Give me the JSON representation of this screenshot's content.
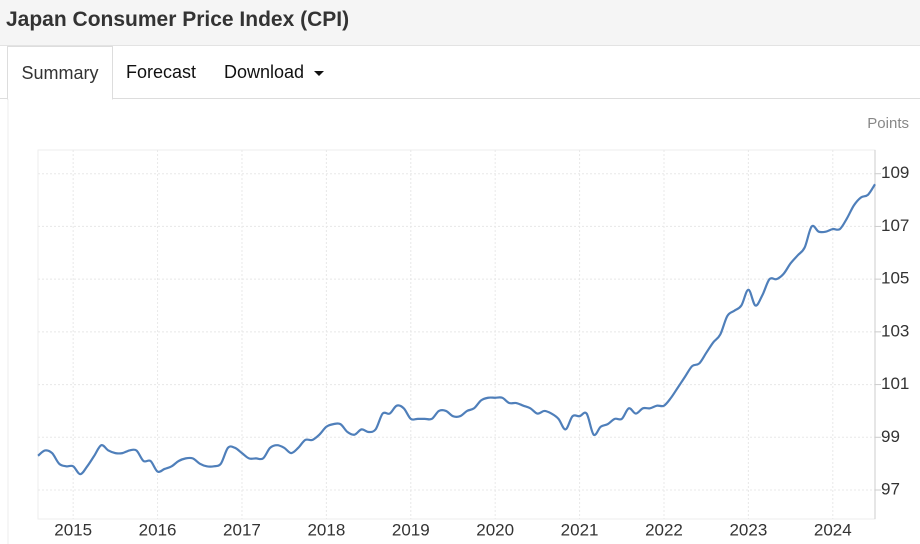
{
  "header": {
    "title": "Japan Consumer Price Index (CPI)"
  },
  "tabs": [
    "Summary",
    "Forecast",
    "Download"
  ],
  "chart_data": {
    "type": "line",
    "unit_label": "Points",
    "x": [
      "2014-08",
      "2014-09",
      "2014-10",
      "2014-11",
      "2014-12",
      "2015-01",
      "2015-02",
      "2015-03",
      "2015-04",
      "2015-05",
      "2015-06",
      "2015-07",
      "2015-08",
      "2015-09",
      "2015-10",
      "2015-11",
      "2015-12",
      "2016-01",
      "2016-02",
      "2016-03",
      "2016-04",
      "2016-05",
      "2016-06",
      "2016-07",
      "2016-08",
      "2016-09",
      "2016-10",
      "2016-11",
      "2016-12",
      "2017-01",
      "2017-02",
      "2017-03",
      "2017-04",
      "2017-05",
      "2017-06",
      "2017-07",
      "2017-08",
      "2017-09",
      "2017-10",
      "2017-11",
      "2017-12",
      "2018-01",
      "2018-02",
      "2018-03",
      "2018-04",
      "2018-05",
      "2018-06",
      "2018-07",
      "2018-08",
      "2018-09",
      "2018-10",
      "2018-11",
      "2018-12",
      "2019-01",
      "2019-02",
      "2019-03",
      "2019-04",
      "2019-05",
      "2019-06",
      "2019-07",
      "2019-08",
      "2019-09",
      "2019-10",
      "2019-11",
      "2019-12",
      "2020-01",
      "2020-02",
      "2020-03",
      "2020-04",
      "2020-05",
      "2020-06",
      "2020-07",
      "2020-08",
      "2020-09",
      "2020-10",
      "2020-11",
      "2020-12",
      "2021-01",
      "2021-02",
      "2021-03",
      "2021-04",
      "2021-05",
      "2021-06",
      "2021-07",
      "2021-08",
      "2021-09",
      "2021-10",
      "2021-11",
      "2021-12",
      "2022-01",
      "2022-02",
      "2022-03",
      "2022-04",
      "2022-05",
      "2022-06",
      "2022-07",
      "2022-08",
      "2022-09",
      "2022-10",
      "2022-11",
      "2022-12",
      "2023-01",
      "2023-02",
      "2023-03",
      "2023-04",
      "2023-05",
      "2023-06",
      "2023-07",
      "2023-08",
      "2023-09",
      "2023-10",
      "2023-11",
      "2023-12",
      "2024-01",
      "2024-02",
      "2024-03",
      "2024-04",
      "2024-05",
      "2024-06",
      "2024-07"
    ],
    "series": [
      {
        "name": "CPI",
        "color": "#4f7fba",
        "values": [
          98.3,
          98.5,
          98.4,
          98.0,
          97.9,
          97.9,
          97.6,
          97.9,
          98.3,
          98.7,
          98.5,
          98.4,
          98.4,
          98.5,
          98.5,
          98.1,
          98.1,
          97.7,
          97.8,
          97.9,
          98.1,
          98.2,
          98.2,
          98.0,
          97.9,
          97.9,
          98.0,
          98.6,
          98.6,
          98.4,
          98.2,
          98.2,
          98.2,
          98.6,
          98.7,
          98.6,
          98.4,
          98.6,
          98.9,
          98.9,
          99.1,
          99.4,
          99.5,
          99.5,
          99.2,
          99.1,
          99.3,
          99.2,
          99.3,
          99.9,
          99.9,
          100.2,
          100.1,
          99.7,
          99.7,
          99.7,
          99.7,
          100.0,
          100.0,
          99.8,
          99.8,
          100.0,
          100.1,
          100.4,
          100.5,
          100.5,
          100.5,
          100.3,
          100.3,
          100.2,
          100.1,
          99.9,
          100.0,
          99.9,
          99.7,
          99.3,
          99.8,
          99.8,
          99.9,
          99.1,
          99.4,
          99.5,
          99.7,
          99.7,
          100.1,
          99.9,
          100.1,
          100.1,
          100.2,
          100.2,
          100.5,
          100.9,
          101.3,
          101.7,
          101.8,
          102.2,
          102.6,
          102.9,
          103.6,
          103.8,
          104.0,
          104.6,
          104.0,
          104.4,
          105.0,
          105.0,
          105.2,
          105.6,
          105.9,
          106.2,
          107.0,
          106.8,
          106.8,
          106.9,
          106.9,
          107.3,
          107.8,
          108.1,
          108.2,
          108.6
        ]
      }
    ],
    "xlim": [
      "2014-08",
      "2024-07"
    ],
    "xticks": [
      2015,
      2016,
      2017,
      2018,
      2019,
      2020,
      2021,
      2022,
      2023,
      2024
    ],
    "ylim": [
      95.9,
      109.9
    ],
    "yticks": [
      97,
      99,
      101,
      103,
      105,
      107,
      109
    ],
    "grid": true
  }
}
